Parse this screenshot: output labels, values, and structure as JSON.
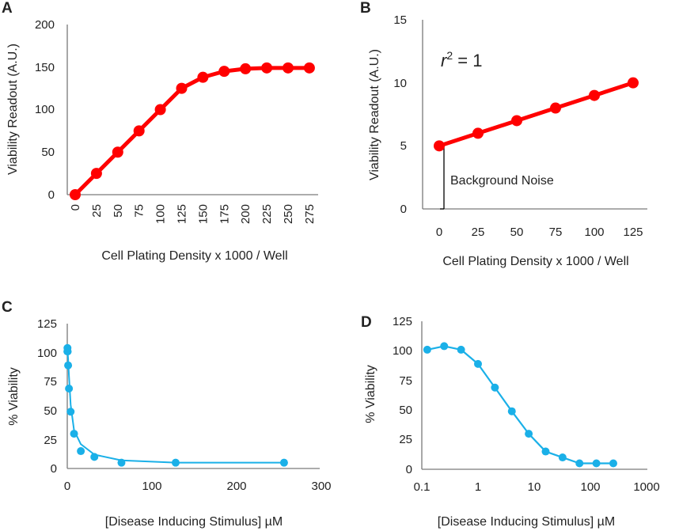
{
  "chart_data": [
    {
      "panel": "A",
      "type": "line",
      "title": "",
      "xlabel": "Cell Plating Density x 1000 / Well",
      "ylabel": "Viability Readout (A.U.)",
      "x_scale": "category",
      "tick_rotation": "vertical",
      "categories": [
        "0",
        "25",
        "50",
        "75",
        "100",
        "125",
        "150",
        "175",
        "200",
        "225",
        "250",
        "275"
      ],
      "yticks": [
        "0",
        "50",
        "100",
        "150",
        "200"
      ],
      "ylim": [
        0,
        200
      ],
      "series": [
        {
          "name": "viability",
          "color": "#ff0000",
          "values": [
            0,
            25,
            50,
            75,
            100,
            125,
            138,
            145,
            148,
            149,
            149,
            149
          ]
        }
      ]
    },
    {
      "panel": "B",
      "type": "line",
      "title": "",
      "xlabel": "Cell Plating Density x 1000 / Well",
      "ylabel": "Viability Readout (A.U.)",
      "x_scale": "category",
      "categories": [
        "0",
        "25",
        "50",
        "75",
        "100",
        "125"
      ],
      "yticks": [
        "0",
        "5",
        "10",
        "15"
      ],
      "ylim": [
        0,
        15
      ],
      "series": [
        {
          "name": "viability",
          "color": "#ff0000",
          "values": [
            5,
            6,
            7,
            8,
            9,
            10
          ]
        }
      ],
      "annotations": {
        "equation_symbol": "r",
        "equation_exponent": "2",
        "equation_rest": " = 1",
        "background_label": "Background Noise"
      }
    },
    {
      "panel": "C",
      "type": "scatter",
      "title": "",
      "xlabel": "[Disease Inducing Stimulus] µM",
      "ylabel": "% Viability",
      "x_scale": "linear",
      "xlim": [
        0,
        300
      ],
      "xticks": [
        "0",
        "100",
        "200",
        "300"
      ],
      "ylim": [
        0,
        125
      ],
      "yticks": [
        "0",
        "25",
        "50",
        "75",
        "100",
        "125"
      ],
      "points": {
        "color": "#1ab0e8",
        "x": [
          0.125,
          0.25,
          0.5,
          1,
          2,
          4,
          8,
          16,
          32,
          64,
          128,
          256
        ],
        "y": [
          101,
          104,
          101,
          89,
          69,
          49,
          30,
          15,
          10,
          5,
          5,
          5
        ]
      },
      "fit": {
        "color": "#1ab0e8",
        "x": [
          0,
          1,
          2,
          4,
          8,
          16,
          32,
          64,
          128,
          256
        ],
        "y": [
          104,
          95,
          80,
          55,
          33,
          21,
          12,
          7,
          5,
          5
        ]
      }
    },
    {
      "panel": "D",
      "type": "line",
      "title": "",
      "xlabel": "[Disease Inducing Stimulus] µM",
      "ylabel": "% Viability",
      "x_scale": "log",
      "xlim": [
        0.1,
        1000
      ],
      "xticks": [
        "0.1",
        "1",
        "10",
        "100",
        "1000"
      ],
      "xtick_values": [
        0.1,
        1,
        10,
        100,
        1000
      ],
      "ylim": [
        0,
        125
      ],
      "yticks": [
        "0",
        "25",
        "50",
        "75",
        "100",
        "125"
      ],
      "series": [
        {
          "name": "viability",
          "color": "#1ab0e8",
          "x": [
            0.125,
            0.25,
            0.5,
            1,
            2,
            4,
            8,
            16,
            32,
            64,
            128,
            256
          ],
          "y": [
            101,
            104,
            101,
            89,
            69,
            49,
            30,
            15,
            10,
            5,
            5,
            5
          ]
        }
      ]
    }
  ]
}
